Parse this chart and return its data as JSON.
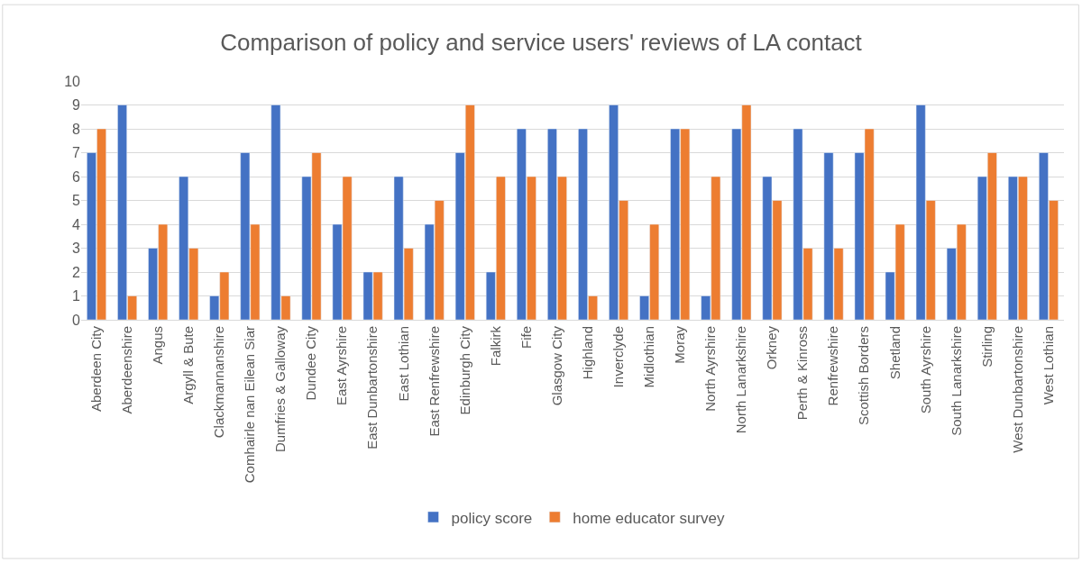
{
  "chart_data": {
    "type": "bar",
    "title": "Comparison of policy and service users' reviews of LA contact",
    "categories": [
      "Aberdeen City",
      "Aberdeenshire",
      "Angus",
      "Argyll & Bute",
      "Clackmannanshire",
      "Comhairle nan Eilean Siar",
      "Dumfries & Galloway",
      "Dundee City",
      "East Ayrshire",
      "East Dunbartonshire",
      "East Lothian",
      "East Renfrewshire",
      "Edinburgh City",
      "Falkirk",
      "Fife",
      "Glasgow City",
      "Highland",
      "Inverclyde",
      "Midlothian",
      "Moray",
      "North Ayrshire",
      "North Lanarkshire",
      "Orkney",
      "Perth & Kinross",
      "Renfrewshire",
      "Scottish Borders",
      "Shetland",
      "South Ayrshire",
      "South Lanarkshire",
      "Stirling",
      "West Dunbartonshire",
      "West Lothian"
    ],
    "series": [
      {
        "name": "policy score",
        "color": "#4472c4",
        "values": [
          7,
          9,
          3,
          6,
          1,
          7,
          9,
          6,
          4,
          2,
          6,
          4,
          7,
          2,
          8,
          8,
          8,
          9,
          1,
          8,
          1,
          8,
          6,
          8,
          7,
          7,
          2,
          9,
          3,
          6,
          6,
          7
        ]
      },
      {
        "name": "home educator survey",
        "color": "#ed7d31",
        "values": [
          8,
          1,
          4,
          3,
          2,
          4,
          1,
          7,
          6,
          2,
          3,
          5,
          9,
          6,
          6,
          6,
          1,
          5,
          4,
          8,
          6,
          9,
          5,
          3,
          3,
          8,
          4,
          5,
          4,
          7,
          6,
          5
        ]
      }
    ],
    "ylim": [
      0,
      10
    ],
    "yticks": [
      0,
      1,
      2,
      3,
      4,
      5,
      6,
      7,
      8,
      9,
      10
    ],
    "grid": "y",
    "legend": "bottom"
  }
}
